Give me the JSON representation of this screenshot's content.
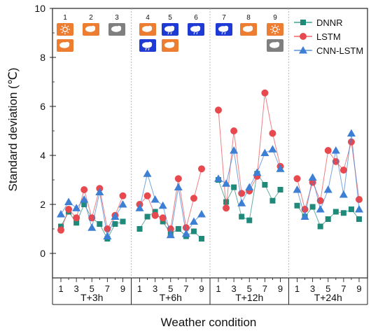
{
  "chart_data": {
    "type": "line",
    "xlabel": "Weather condition",
    "ylabel": "Standard deviation (℃)",
    "ylim": [
      -1,
      10
    ],
    "y_ticks": [
      0,
      2,
      4,
      6,
      8,
      10
    ],
    "x_tick_labels": [
      "1",
      "3",
      "5",
      "7",
      "9"
    ],
    "groups": [
      "T+3h",
      "T+6h",
      "T+12h",
      "T+24h"
    ],
    "categories": [
      1,
      2,
      3,
      4,
      5,
      6,
      7,
      8,
      9
    ],
    "series": [
      {
        "name": "DNNR",
        "marker": "square",
        "color": "#1f8a7a",
        "values": [
          [
            1.1,
            1.7,
            1.25,
            2.0,
            1.45,
            1.2,
            0.6,
            1.2,
            1.3
          ],
          [
            1.0,
            1.5,
            1.7,
            1.3,
            0.8,
            1.0,
            0.7,
            0.9,
            0.6
          ],
          [
            3.0,
            2.1,
            2.7,
            1.5,
            1.35,
            3.25,
            2.8,
            2.15,
            2.6
          ],
          [
            1.95,
            1.5,
            1.9,
            1.1,
            1.4,
            1.7,
            1.65,
            1.8,
            1.4
          ]
        ]
      },
      {
        "name": "LSTM",
        "marker": "circle",
        "color": "#e8494f",
        "values": [
          [
            0.95,
            1.8,
            1.45,
            2.6,
            1.45,
            2.65,
            1.0,
            1.55,
            2.35
          ],
          [
            2.0,
            2.35,
            1.55,
            1.45,
            1.0,
            3.05,
            1.05,
            2.25,
            3.45
          ],
          [
            5.85,
            1.85,
            5.0,
            2.45,
            2.55,
            3.15,
            6.55,
            4.9,
            3.55
          ],
          [
            3.05,
            1.8,
            2.9,
            2.15,
            4.2,
            3.75,
            3.4,
            4.55,
            2.2
          ]
        ]
      },
      {
        "name": "CNN-LSTM",
        "marker": "triangle",
        "color": "#3c7fd4",
        "values": [
          [
            1.6,
            2.1,
            1.85,
            2.2,
            1.05,
            2.5,
            0.7,
            1.5,
            2.0
          ],
          [
            1.85,
            3.25,
            2.2,
            1.95,
            0.75,
            2.7,
            0.8,
            1.3,
            1.6
          ],
          [
            3.05,
            2.85,
            4.2,
            2.05,
            2.7,
            3.3,
            4.1,
            4.25,
            3.45
          ],
          [
            2.6,
            1.5,
            3.1,
            1.8,
            2.6,
            4.2,
            2.4,
            4.9,
            1.8
          ]
        ]
      }
    ],
    "legend_position": "top-right",
    "grid": false
  },
  "weather_icons": [
    {
      "label": "1",
      "icons": [
        {
          "name": "sunny-icon",
          "color": "#ed7d31"
        },
        {
          "name": "cloud-icon",
          "color": "#ed7d31"
        }
      ]
    },
    {
      "label": "2",
      "icons": [
        {
          "name": "cloud-icon",
          "color": "#ed7d31"
        }
      ]
    },
    {
      "label": "3",
      "icons": [
        {
          "name": "cloud-icon",
          "color": "#7f7f7f"
        }
      ]
    },
    {
      "label": "4",
      "icons": [
        {
          "name": "cloud-icon",
          "color": "#ed7d31"
        },
        {
          "name": "rain-cloud-icon",
          "color": "#1f3bd6"
        }
      ]
    },
    {
      "label": "5",
      "icons": [
        {
          "name": "rain-cloud-icon",
          "color": "#1f3bd6"
        },
        {
          "name": "cloud-icon",
          "color": "#ed7d31"
        }
      ]
    },
    {
      "label": "6",
      "icons": [
        {
          "name": "rain-cloud-icon",
          "color": "#1f3bd6"
        }
      ]
    },
    {
      "label": "7",
      "icons": [
        {
          "name": "rain-cloud-icon",
          "color": "#1f3bd6"
        }
      ]
    },
    {
      "label": "8",
      "icons": [
        {
          "name": "cloud-icon",
          "color": "#ed7d31"
        }
      ]
    },
    {
      "label": "9",
      "icons": [
        {
          "name": "sunny-icon",
          "color": "#ed7d31"
        },
        {
          "name": "cloud-icon",
          "color": "#7f7f7f"
        }
      ]
    }
  ]
}
